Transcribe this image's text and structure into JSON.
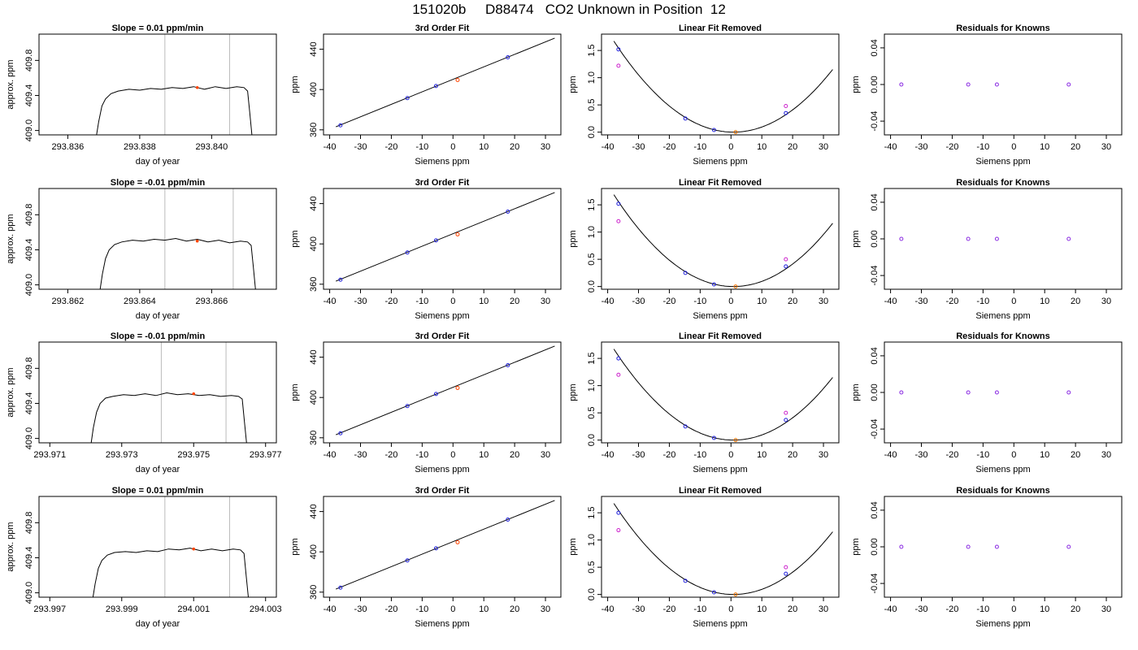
{
  "page_title": "151020b     D88474   CO2 Unknown in Position  12",
  "colors": {
    "axis": "#000000",
    "fit_line": "#000000",
    "window_line": "#bbbbbb",
    "known_point": "#2020dd",
    "unknown_point": "#ff4400",
    "unknown_residual": "#ff7700",
    "original_point": "#cc22cc",
    "residual_point": "#8a2be2"
  },
  "chart_data": [
    {
      "type": "line",
      "title": "Slope =  0.01  ppm/min",
      "xlabel": "day of year",
      "ylabel": "approx. ppm",
      "xlim": [
        293.8352,
        293.8418
      ],
      "ylim": [
        408.95,
        410.1
      ],
      "xticks": [
        293.836,
        293.838,
        293.84
      ],
      "xticklabels": [
        "293.836",
        "293.838",
        "293.840"
      ],
      "yticks": [
        409.0,
        409.4,
        409.8
      ],
      "yticklabels": [
        "409.0",
        "409.4",
        "409.8"
      ],
      "window_x": [
        293.8387,
        293.8405
      ],
      "x": [
        293.8368,
        293.83686,
        293.83695,
        293.83705,
        293.8372,
        293.8374,
        293.8377,
        293.838,
        293.8383,
        293.8386,
        293.8389,
        293.8392,
        293.8395,
        293.8398,
        293.8401,
        293.8404,
        293.8407,
        293.8409,
        293.841,
        293.84106,
        293.84112
      ],
      "y": [
        408.95,
        409.1,
        409.28,
        409.36,
        409.42,
        409.45,
        409.47,
        409.46,
        409.48,
        409.47,
        409.49,
        409.48,
        409.5,
        409.47,
        409.5,
        409.48,
        409.5,
        409.49,
        409.45,
        409.2,
        408.95
      ],
      "marker_x": 293.8396,
      "marker_y": 409.49
    },
    {
      "type": "scatter",
      "title": "3rd Order Fit",
      "xlabel": "Siemens ppm",
      "ylabel": "ppm",
      "xlim": [
        -42,
        35
      ],
      "ylim": [
        355,
        455
      ],
      "xticks": [
        -40,
        -30,
        -20,
        -10,
        0,
        10,
        20,
        30
      ],
      "xticklabels": [
        "-40",
        "-30",
        "-20",
        "-10",
        "0",
        "10",
        "20",
        "30"
      ],
      "yticks": [
        360,
        400,
        440
      ],
      "yticklabels": [
        "360",
        "400",
        "440"
      ],
      "fit_line": {
        "x": [
          -38,
          33
        ],
        "y": [
          363,
          451
        ]
      },
      "knowns": {
        "x": [
          -36.5,
          -14.8,
          -5.5,
          17.8
        ],
        "y": [
          364.5,
          391.5,
          403.5,
          432.0
        ]
      },
      "unknown": {
        "x": [
          1.5
        ],
        "y": [
          409.5
        ]
      }
    },
    {
      "type": "scatter",
      "title": "Linear Fit Removed",
      "xlabel": "Siemens ppm",
      "ylabel": "ppm",
      "xlim": [
        -42,
        35
      ],
      "ylim": [
        -0.05,
        1.8
      ],
      "xticks": [
        -40,
        -30,
        -20,
        -10,
        0,
        10,
        20,
        30
      ],
      "xticklabels": [
        "-40",
        "-30",
        "-20",
        "-10",
        "0",
        "10",
        "20",
        "30"
      ],
      "yticks": [
        0.0,
        0.5,
        1.0,
        1.5
      ],
      "yticklabels": [
        "0.0",
        "0.5",
        "1.0",
        "1.5"
      ],
      "curve": {
        "vertex_x": 0.8,
        "coef": 0.00111,
        "x_range": [
          -38,
          33
        ]
      },
      "knowns": {
        "x": [
          -36.5,
          -14.8,
          -5.5,
          17.8
        ],
        "y": [
          1.52,
          0.25,
          0.04,
          0.35
        ]
      },
      "originals": {
        "x": [
          -36.5,
          17.8
        ],
        "y": [
          1.22,
          0.48
        ]
      },
      "unknown": {
        "x": [
          1.5
        ],
        "y": [
          0.0
        ]
      }
    },
    {
      "type": "scatter",
      "title": "Residuals for Knowns",
      "xlabel": "Siemens ppm",
      "ylabel": "ppm",
      "xlim": [
        -42,
        35
      ],
      "ylim": [
        -0.055,
        0.055
      ],
      "xticks": [
        -40,
        -30,
        -20,
        -10,
        0,
        10,
        20,
        30
      ],
      "xticklabels": [
        "-40",
        "-30",
        "-20",
        "-10",
        "0",
        "10",
        "20",
        "30"
      ],
      "yticks": [
        -0.04,
        0.0,
        0.04
      ],
      "yticklabels": [
        "-0.04",
        "0.00",
        "0.04"
      ],
      "points": {
        "x": [
          -36.5,
          -14.8,
          -5.5,
          17.8
        ],
        "y": [
          0,
          0,
          0,
          0
        ]
      }
    },
    {
      "type": "line",
      "title": "Slope =  -0.01  ppm/min",
      "xlabel": "day of year",
      "ylabel": "approx. ppm",
      "xlim": [
        293.8612,
        293.8678
      ],
      "ylim": [
        408.95,
        410.1
      ],
      "xticks": [
        293.862,
        293.864,
        293.866
      ],
      "xticklabels": [
        "293.862",
        "293.864",
        "293.866"
      ],
      "yticks": [
        409.0,
        409.4,
        409.8
      ],
      "yticklabels": [
        "409.0",
        "409.4",
        "409.8"
      ],
      "window_x": [
        293.8647,
        293.8666
      ],
      "x": [
        293.8629,
        293.86296,
        293.86305,
        293.86315,
        293.8633,
        293.8635,
        293.8638,
        293.8641,
        293.8644,
        293.8647,
        293.865,
        293.8653,
        293.8656,
        293.8659,
        293.8662,
        293.8665,
        293.8668,
        293.867,
        293.8671,
        293.86716,
        293.86722
      ],
      "y": [
        408.95,
        409.12,
        409.3,
        409.4,
        409.46,
        409.49,
        409.51,
        409.5,
        409.52,
        409.51,
        409.53,
        409.5,
        409.52,
        409.49,
        409.51,
        409.48,
        409.5,
        409.49,
        409.45,
        409.2,
        408.95
      ],
      "marker_x": 293.8656,
      "marker_y": 409.5
    },
    {
      "type": "scatter",
      "title": "3rd Order Fit",
      "xlabel": "Siemens ppm",
      "ylabel": "ppm",
      "xlim": [
        -42,
        35
      ],
      "ylim": [
        355,
        455
      ],
      "xticks": [
        -40,
        -30,
        -20,
        -10,
        0,
        10,
        20,
        30
      ],
      "xticklabels": [
        "-40",
        "-30",
        "-20",
        "-10",
        "0",
        "10",
        "20",
        "30"
      ],
      "yticks": [
        360,
        400,
        440
      ],
      "yticklabels": [
        "360",
        "400",
        "440"
      ],
      "fit_line": {
        "x": [
          -38,
          33
        ],
        "y": [
          363,
          451
        ]
      },
      "knowns": {
        "x": [
          -36.5,
          -14.8,
          -5.5,
          17.8
        ],
        "y": [
          364.5,
          391.5,
          403.5,
          432.0
        ]
      },
      "unknown": {
        "x": [
          1.5
        ],
        "y": [
          409.5
        ]
      }
    },
    {
      "type": "scatter",
      "title": "Linear Fit Removed",
      "xlabel": "Siemens ppm",
      "ylabel": "ppm",
      "xlim": [
        -42,
        35
      ],
      "ylim": [
        -0.05,
        1.8
      ],
      "xticks": [
        -40,
        -30,
        -20,
        -10,
        0,
        10,
        20,
        30
      ],
      "xticklabels": [
        "-40",
        "-30",
        "-20",
        "-10",
        "0",
        "10",
        "20",
        "30"
      ],
      "yticks": [
        0.0,
        0.5,
        1.0,
        1.5
      ],
      "yticklabels": [
        "0.0",
        "0.5",
        "1.0",
        "1.5"
      ],
      "curve": {
        "vertex_x": 0.8,
        "coef": 0.00112,
        "x_range": [
          -38,
          33
        ]
      },
      "knowns": {
        "x": [
          -36.5,
          -14.8,
          -5.5,
          17.8
        ],
        "y": [
          1.52,
          0.25,
          0.04,
          0.37
        ]
      },
      "originals": {
        "x": [
          -36.5,
          17.8
        ],
        "y": [
          1.2,
          0.5
        ]
      },
      "unknown": {
        "x": [
          1.5
        ],
        "y": [
          0.0
        ]
      }
    },
    {
      "type": "scatter",
      "title": "Residuals for Knowns",
      "xlabel": "Siemens ppm",
      "ylabel": "ppm",
      "xlim": [
        -42,
        35
      ],
      "ylim": [
        -0.055,
        0.055
      ],
      "xticks": [
        -40,
        -30,
        -20,
        -10,
        0,
        10,
        20,
        30
      ],
      "xticklabels": [
        "-40",
        "-30",
        "-20",
        "-10",
        "0",
        "10",
        "20",
        "30"
      ],
      "yticks": [
        -0.04,
        0.0,
        0.04
      ],
      "yticklabels": [
        "-0.04",
        "0.00",
        "0.04"
      ],
      "points": {
        "x": [
          -36.5,
          -14.8,
          -5.5,
          17.8
        ],
        "y": [
          0,
          0,
          0,
          0
        ]
      }
    },
    {
      "type": "line",
      "title": "Slope =  -0.01  ppm/min",
      "xlabel": "day of year",
      "ylabel": "approx. ppm",
      "xlim": [
        293.9707,
        293.9773
      ],
      "ylim": [
        408.95,
        410.1
      ],
      "xticks": [
        293.971,
        293.973,
        293.975,
        293.977
      ],
      "xticklabels": [
        "293.971",
        "293.973",
        "293.975",
        "293.977"
      ],
      "yticks": [
        409.0,
        409.4,
        409.8
      ],
      "yticklabels": [
        "409.0",
        "409.4",
        "409.8"
      ],
      "window_x": [
        293.9741,
        293.9759
      ],
      "x": [
        293.97215,
        293.97221,
        293.9723,
        293.9724,
        293.97255,
        293.97275,
        293.97305,
        293.97335,
        293.97365,
        293.97395,
        293.97425,
        293.97455,
        293.97485,
        293.97515,
        293.97545,
        293.97575,
        293.97605,
        293.97625,
        293.97635,
        293.97641,
        293.97647
      ],
      "y": [
        408.95,
        409.12,
        409.3,
        409.4,
        409.46,
        409.48,
        409.5,
        409.49,
        409.51,
        409.49,
        409.52,
        409.5,
        409.51,
        409.49,
        409.5,
        409.48,
        409.49,
        409.48,
        409.45,
        409.2,
        408.95
      ],
      "marker_x": 293.975,
      "marker_y": 409.51
    },
    {
      "type": "scatter",
      "title": "3rd Order Fit",
      "xlabel": "Siemens ppm",
      "ylabel": "ppm",
      "xlim": [
        -42,
        35
      ],
      "ylim": [
        355,
        455
      ],
      "xticks": [
        -40,
        -30,
        -20,
        -10,
        0,
        10,
        20,
        30
      ],
      "xticklabels": [
        "-40",
        "-30",
        "-20",
        "-10",
        "0",
        "10",
        "20",
        "30"
      ],
      "yticks": [
        360,
        400,
        440
      ],
      "yticklabels": [
        "360",
        "400",
        "440"
      ],
      "fit_line": {
        "x": [
          -38,
          33
        ],
        "y": [
          363,
          451
        ]
      },
      "knowns": {
        "x": [
          -36.5,
          -14.8,
          -5.5,
          17.8
        ],
        "y": [
          364.5,
          391.5,
          403.5,
          432.0
        ]
      },
      "unknown": {
        "x": [
          1.5
        ],
        "y": [
          409.5
        ]
      }
    },
    {
      "type": "scatter",
      "title": "Linear Fit Removed",
      "xlabel": "Siemens ppm",
      "ylabel": "ppm",
      "xlim": [
        -42,
        35
      ],
      "ylim": [
        -0.05,
        1.8
      ],
      "xticks": [
        -40,
        -30,
        -20,
        -10,
        0,
        10,
        20,
        30
      ],
      "xticklabels": [
        "-40",
        "-30",
        "-20",
        "-10",
        "0",
        "10",
        "20",
        "30"
      ],
      "yticks": [
        0.0,
        0.5,
        1.0,
        1.5
      ],
      "yticklabels": [
        "0.0",
        "0.5",
        "1.0",
        "1.5"
      ],
      "curve": {
        "vertex_x": 0.8,
        "coef": 0.00111,
        "x_range": [
          -38,
          33
        ]
      },
      "knowns": {
        "x": [
          -36.5,
          -14.8,
          -5.5,
          17.8
        ],
        "y": [
          1.5,
          0.25,
          0.04,
          0.37
        ]
      },
      "originals": {
        "x": [
          -36.5,
          17.8
        ],
        "y": [
          1.2,
          0.5
        ]
      },
      "unknown": {
        "x": [
          1.5
        ],
        "y": [
          0.0
        ]
      }
    },
    {
      "type": "scatter",
      "title": "Residuals for Knowns",
      "xlabel": "Siemens ppm",
      "ylabel": "ppm",
      "xlim": [
        -42,
        35
      ],
      "ylim": [
        -0.055,
        0.055
      ],
      "xticks": [
        -40,
        -30,
        -20,
        -10,
        0,
        10,
        20,
        30
      ],
      "xticklabels": [
        "-40",
        "-30",
        "-20",
        "-10",
        "0",
        "10",
        "20",
        "30"
      ],
      "yticks": [
        -0.04,
        0.0,
        0.04
      ],
      "yticklabels": [
        "-0.04",
        "0.00",
        "0.04"
      ],
      "points": {
        "x": [
          -36.5,
          -14.8,
          -5.5,
          17.8
        ],
        "y": [
          0,
          0,
          0,
          0
        ]
      }
    },
    {
      "type": "line",
      "title": "Slope =  0.01  ppm/min",
      "xlabel": "day of year",
      "ylabel": "approx. ppm",
      "xlim": [
        293.9967,
        294.0033
      ],
      "ylim": [
        408.95,
        410.1
      ],
      "xticks": [
        293.997,
        293.999,
        294.001,
        294.003
      ],
      "xticklabels": [
        "293.997",
        "293.999",
        "294.001",
        "294.003"
      ],
      "yticks": [
        409.0,
        409.4,
        409.8
      ],
      "yticklabels": [
        "409.0",
        "409.4",
        "409.8"
      ],
      "window_x": [
        294.0002,
        294.002
      ],
      "x": [
        293.9982,
        293.99826,
        293.99835,
        293.99845,
        293.9986,
        293.9988,
        293.9991,
        293.9994,
        293.9997,
        294.0,
        294.0003,
        294.0006,
        294.0009,
        294.0012,
        294.0015,
        294.0018,
        294.0021,
        294.0023,
        294.0024,
        294.00246,
        294.00252
      ],
      "y": [
        408.95,
        409.1,
        409.28,
        409.37,
        409.43,
        409.46,
        409.47,
        409.46,
        409.48,
        409.47,
        409.5,
        409.49,
        409.51,
        409.48,
        409.5,
        409.48,
        409.5,
        409.49,
        409.45,
        409.2,
        408.95
      ],
      "marker_x": 294.001,
      "marker_y": 409.5
    },
    {
      "type": "scatter",
      "title": "3rd Order Fit",
      "xlabel": "Siemens ppm",
      "ylabel": "ppm",
      "xlim": [
        -42,
        35
      ],
      "ylim": [
        355,
        455
      ],
      "xticks": [
        -40,
        -30,
        -20,
        -10,
        0,
        10,
        20,
        30
      ],
      "xticklabels": [
        "-40",
        "-30",
        "-20",
        "-10",
        "0",
        "10",
        "20",
        "30"
      ],
      "yticks": [
        360,
        400,
        440
      ],
      "yticklabels": [
        "360",
        "400",
        "440"
      ],
      "fit_line": {
        "x": [
          -38,
          33
        ],
        "y": [
          363,
          451
        ]
      },
      "knowns": {
        "x": [
          -36.5,
          -14.8,
          -5.5,
          17.8
        ],
        "y": [
          364.5,
          391.5,
          403.5,
          432.0
        ]
      },
      "unknown": {
        "x": [
          1.5
        ],
        "y": [
          409.5
        ]
      }
    },
    {
      "type": "scatter",
      "title": "Linear Fit Removed",
      "xlabel": "Siemens ppm",
      "ylabel": "ppm",
      "xlim": [
        -42,
        35
      ],
      "ylim": [
        -0.05,
        1.8
      ],
      "xticks": [
        -40,
        -30,
        -20,
        -10,
        0,
        10,
        20,
        30
      ],
      "xticklabels": [
        "-40",
        "-30",
        "-20",
        "-10",
        "0",
        "10",
        "20",
        "30"
      ],
      "yticks": [
        0.0,
        0.5,
        1.0,
        1.5
      ],
      "yticklabels": [
        "0.0",
        "0.5",
        "1.0",
        "1.5"
      ],
      "curve": {
        "vertex_x": 0.8,
        "coef": 0.00111,
        "x_range": [
          -38,
          33
        ]
      },
      "knowns": {
        "x": [
          -36.5,
          -14.8,
          -5.5,
          17.8
        ],
        "y": [
          1.5,
          0.25,
          0.04,
          0.38
        ]
      },
      "originals": {
        "x": [
          -36.5,
          17.8
        ],
        "y": [
          1.18,
          0.5
        ]
      },
      "unknown": {
        "x": [
          1.5
        ],
        "y": [
          0.0
        ]
      }
    },
    {
      "type": "scatter",
      "title": "Residuals for Knowns",
      "xlabel": "Siemens ppm",
      "ylabel": "ppm",
      "xlim": [
        -42,
        35
      ],
      "ylim": [
        -0.055,
        0.055
      ],
      "xticks": [
        -40,
        -30,
        -20,
        -10,
        0,
        10,
        20,
        30
      ],
      "xticklabels": [
        "-40",
        "-30",
        "-20",
        "-10",
        "0",
        "10",
        "20",
        "30"
      ],
      "yticks": [
        -0.04,
        0.0,
        0.04
      ],
      "yticklabels": [
        "-0.04",
        "0.00",
        "0.04"
      ],
      "points": {
        "x": [
          -36.5,
          -14.8,
          -5.5,
          17.8
        ],
        "y": [
          0,
          0,
          0,
          0
        ]
      }
    }
  ]
}
